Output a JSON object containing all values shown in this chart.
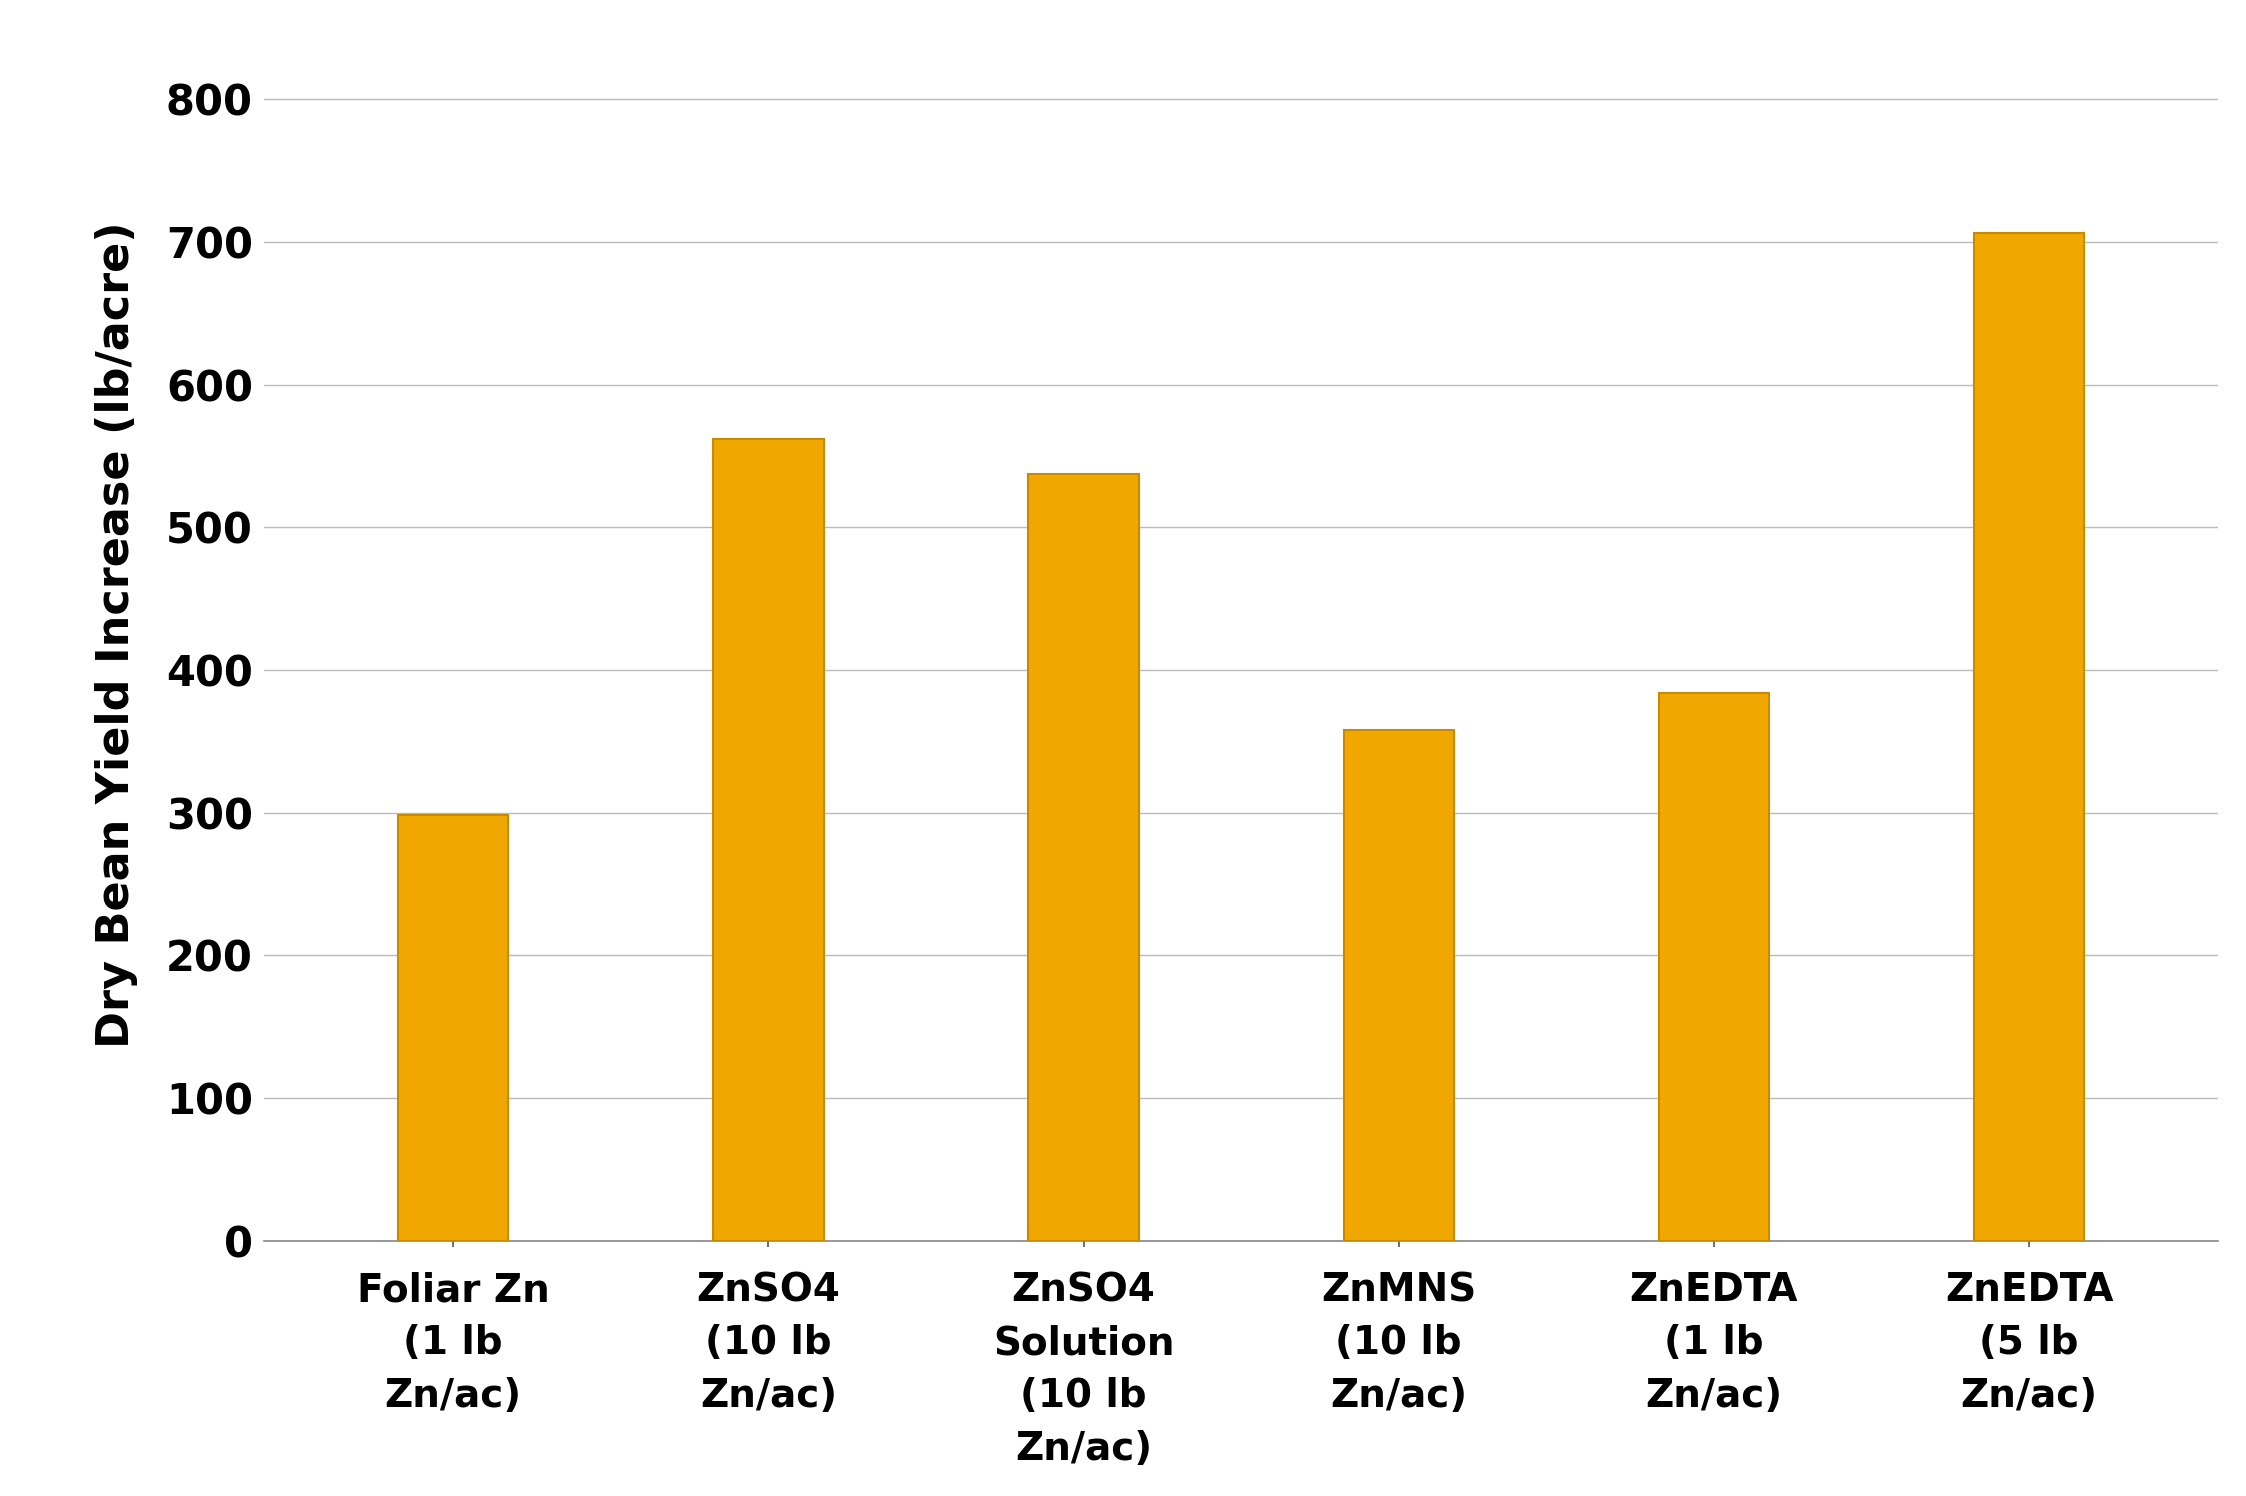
{
  "categories": [
    "Foliar Zn\n(1 lb\nZn/ac)",
    "ZnSO4\n(10 lb\nZn/ac)",
    "ZnSO4\nSolution\n(10 lb\nZn/ac)",
    "ZnMNS\n(10 lb\nZn/ac)",
    "ZnEDTA\n(1 lb\nZn/ac)",
    "ZnEDTA\n(5 lb\nZn/ac)"
  ],
  "values": [
    298,
    562,
    537,
    358,
    384,
    706
  ],
  "bar_color": "#F0A800",
  "bar_edge_color": "#C88A00",
  "ylabel": "Dry Bean Yield Increase (lb/acre)",
  "ylim": [
    0,
    850
  ],
  "yticks": [
    0,
    100,
    200,
    300,
    400,
    500,
    600,
    700,
    800
  ],
  "grid_color": "#BBBBBB",
  "background_color": "#FFFFFF",
  "bar_width": 0.35,
  "axis_label_fontsize": 32,
  "tick_fontsize": 30,
  "xlabel_fontsize": 28
}
